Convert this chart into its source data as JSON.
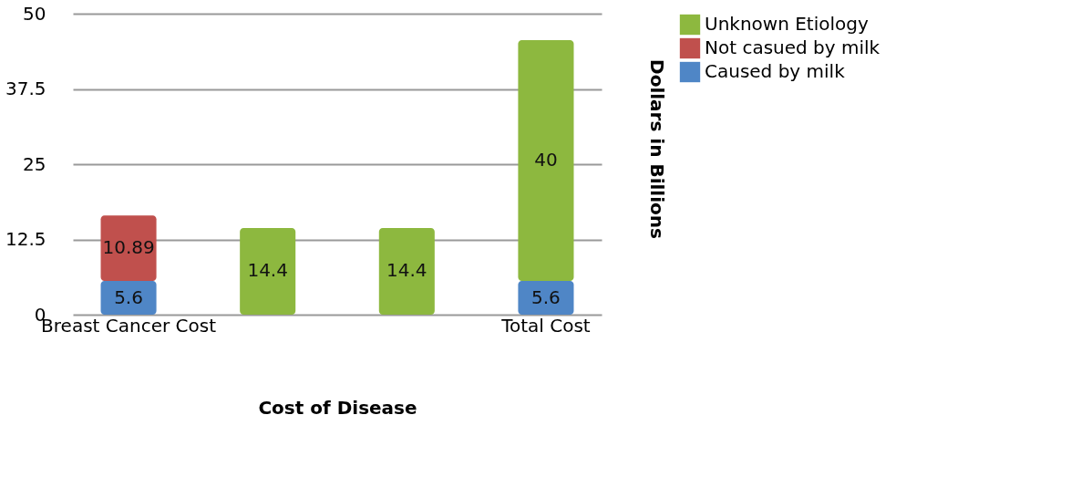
{
  "chart_data": {
    "type": "bar",
    "stacked": true,
    "xlabel": "Cost of Disease",
    "ylabel": "Dollars in Billions",
    "categories": [
      "Breast Cancer Cost",
      null,
      null,
      "Total Cost"
    ],
    "series": [
      {
        "name": "Caused by milk",
        "color": "#4f86c6",
        "values": [
          5.6,
          null,
          null,
          5.6
        ]
      },
      {
        "name": "Not casued by milk",
        "color": "#c0504d",
        "values": [
          10.89,
          null,
          null,
          null
        ]
      },
      {
        "name": "Unknown Etiology",
        "color": "#8db83f",
        "values": [
          null,
          14.4,
          14.4,
          40
        ]
      }
    ],
    "ylim": [
      0,
      50
    ],
    "yticks": [
      0,
      12.5,
      25,
      37.5,
      50
    ],
    "grid": "y",
    "legend": "right",
    "data_labels": true
  }
}
